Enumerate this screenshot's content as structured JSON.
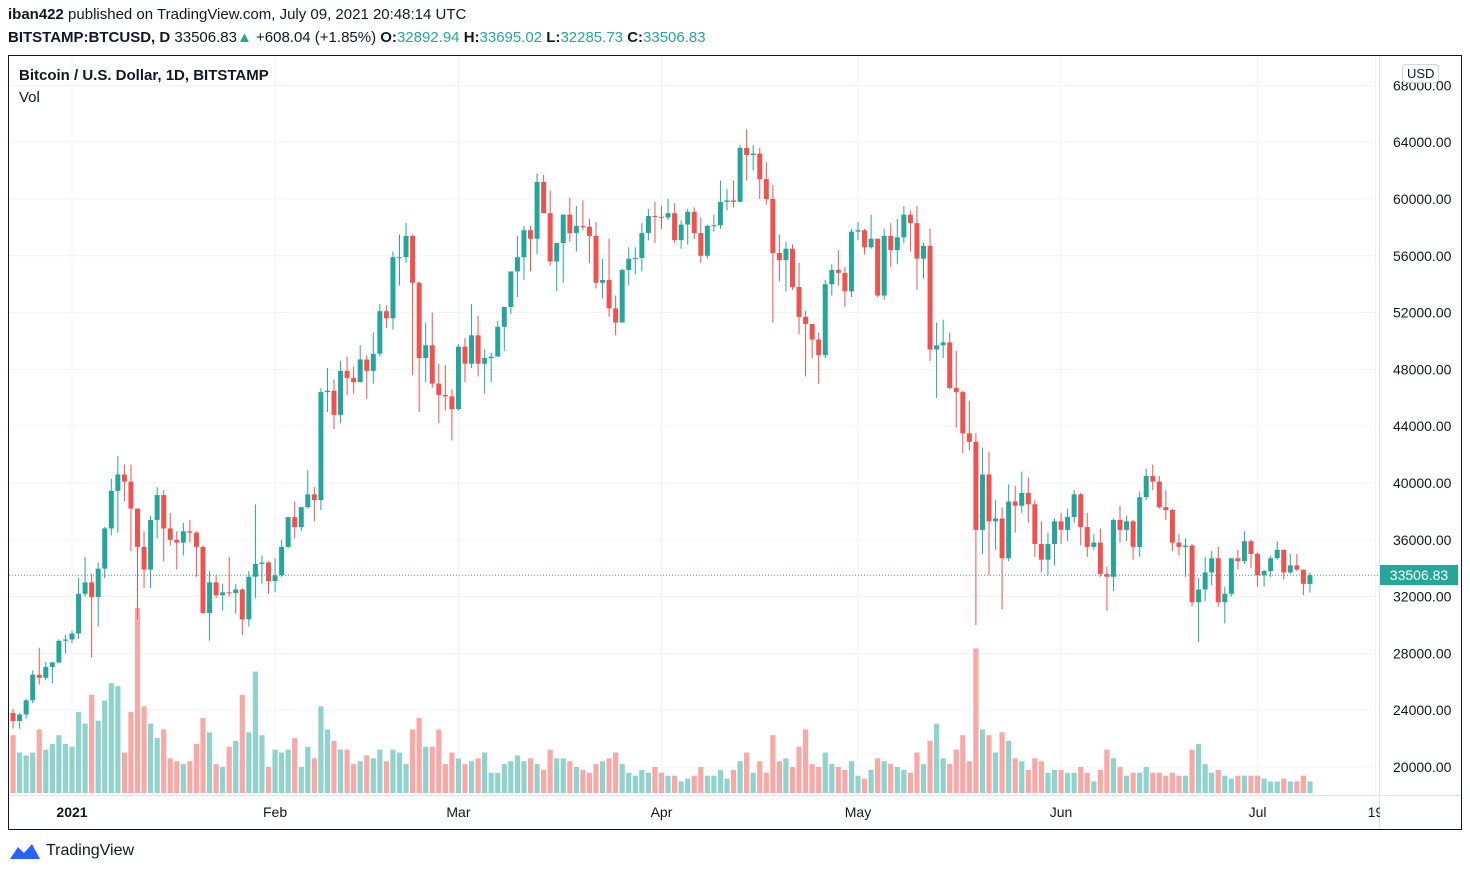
{
  "header": {
    "author": "iban422",
    "published": "published on TradingView.com, July 09, 2021 20:48:14 UTC",
    "symbol": "BITSTAMP:BTCUSD, D",
    "last": "33506.83",
    "change": "+608.04 (+1.85%)",
    "o_label": "O:",
    "o": "32892.94",
    "h_label": "H:",
    "h": "33695.02",
    "l_label": "L:",
    "l": "32285.73",
    "c_label": "C:",
    "c": "33506.83"
  },
  "legend": {
    "title": "Bitcoin / U.S. Dollar, 1D, BITSTAMP",
    "vol": "Vol"
  },
  "currency": "USD",
  "brand": "TradingView",
  "colors": {
    "up": "#26a69a",
    "down": "#ef5350",
    "up_vol": "#92d2cc",
    "down_vol": "#f7a9a7",
    "grid": "#f0f3fa"
  },
  "chart_data": {
    "type": "candlestick",
    "title": "Bitcoin / U.S. Dollar, 1D, BITSTAMP",
    "start_date": "2020-12-22",
    "ylim": [
      18400,
      70000
    ],
    "y_ticks": [
      "20000.00",
      "24000.00",
      "28000.00",
      "32000.00",
      "36000.00",
      "40000.00",
      "44000.00",
      "48000.00",
      "52000.00",
      "56000.00",
      "60000.00",
      "64000.00",
      "68000.00"
    ],
    "x_ticks": [
      {
        "label": "2021",
        "date": "2021-01-01",
        "bold": true
      },
      {
        "label": "Feb",
        "date": "2021-02-01"
      },
      {
        "label": "Mar",
        "date": "2021-03-01"
      },
      {
        "label": "Apr",
        "date": "2021-04-01"
      },
      {
        "label": "May",
        "date": "2021-05-01"
      },
      {
        "label": "Jun",
        "date": "2021-06-01"
      },
      {
        "label": "Jul",
        "date": "2021-07-01"
      },
      {
        "label": "19",
        "date": "2021-07-19"
      }
    ],
    "last_price": "33506.83",
    "columns": [
      "open",
      "high",
      "low",
      "close",
      "volume_k"
    ],
    "ohlcv": [
      [
        22800,
        23900,
        22350,
        23800,
        9
      ],
      [
        23800,
        24100,
        22700,
        23240,
        10
      ],
      [
        23240,
        23800,
        22700,
        23700,
        7
      ],
      [
        23700,
        24800,
        23400,
        24700,
        6.5
      ],
      [
        24700,
        26800,
        24500,
        26500,
        7
      ],
      [
        26500,
        28400,
        25800,
        26280,
        11
      ],
      [
        26280,
        27400,
        26100,
        27050,
        7.5
      ],
      [
        27050,
        27400,
        25900,
        27360,
        8.5
      ],
      [
        27360,
        28990,
        27300,
        28890,
        10
      ],
      [
        28890,
        29300,
        28000,
        28980,
        8.5
      ],
      [
        28980,
        29600,
        28700,
        29400,
        8
      ],
      [
        29400,
        33300,
        29000,
        32200,
        14
      ],
      [
        32200,
        34800,
        32000,
        33000,
        12
      ],
      [
        33000,
        33600,
        27700,
        31970,
        17
      ],
      [
        31970,
        34400,
        29900,
        33970,
        12.5
      ],
      [
        33970,
        36900,
        33300,
        36800,
        16
      ],
      [
        36800,
        40300,
        36300,
        39450,
        19
      ],
      [
        39450,
        41900,
        36500,
        40600,
        18.5
      ],
      [
        40600,
        41300,
        38700,
        40100,
        7
      ],
      [
        40100,
        41300,
        35200,
        38200,
        14
      ],
      [
        38200,
        38200,
        30400,
        35500,
        32
      ],
      [
        35500,
        36600,
        32600,
        33900,
        15
      ],
      [
        33900,
        37700,
        32600,
        37400,
        12
      ],
      [
        37400,
        39700,
        36100,
        39150,
        9.5
      ],
      [
        39150,
        39500,
        34500,
        36800,
        11
      ],
      [
        36800,
        37900,
        35600,
        36000,
        6
      ],
      [
        36000,
        36600,
        33900,
        35800,
        5.5
      ],
      [
        35800,
        37200,
        34900,
        36600,
        5
      ],
      [
        36600,
        37400,
        35800,
        36500,
        5.5
      ],
      [
        36500,
        36600,
        33400,
        35500,
        8.5
      ],
      [
        35500,
        35600,
        30800,
        30850,
        13
      ],
      [
        30850,
        33800,
        28900,
        33000,
        10.5
      ],
      [
        33000,
        33500,
        31900,
        32100,
        5
      ],
      [
        32100,
        32900,
        31000,
        32300,
        4.5
      ],
      [
        32300,
        34800,
        32000,
        32250,
        8
      ],
      [
        32250,
        32900,
        30800,
        32500,
        9
      ],
      [
        32500,
        32600,
        29300,
        30400,
        17
      ],
      [
        30400,
        33800,
        29900,
        33400,
        10.5
      ],
      [
        33400,
        38500,
        31900,
        34300,
        21
      ],
      [
        34300,
        34900,
        32900,
        34400,
        10
      ],
      [
        34400,
        34500,
        32200,
        33100,
        4.5
      ],
      [
        33100,
        34700,
        32300,
        33500,
        7.5
      ],
      [
        33500,
        36000,
        33400,
        35500,
        7
      ],
      [
        35500,
        37600,
        35400,
        37600,
        7.5
      ],
      [
        37600,
        38700,
        36100,
        36900,
        9.5
      ],
      [
        36900,
        38300,
        36600,
        38300,
        4.5
      ],
      [
        38300,
        40900,
        38200,
        39200,
        8
      ],
      [
        39200,
        39700,
        37300,
        38800,
        6
      ],
      [
        38800,
        46700,
        38100,
        46400,
        15
      ],
      [
        46400,
        48100,
        45000,
        46500,
        11
      ],
      [
        46500,
        47300,
        43800,
        44800,
        9
      ],
      [
        44800,
        48600,
        44200,
        47900,
        7.5
      ],
      [
        47900,
        48900,
        46200,
        47400,
        7.5
      ],
      [
        47400,
        48200,
        46300,
        47100,
        5
      ],
      [
        47100,
        49700,
        47100,
        48700,
        5.5
      ],
      [
        48700,
        49000,
        45900,
        47900,
        6.5
      ],
      [
        47900,
        50600,
        47000,
        49100,
        6
      ],
      [
        49100,
        52600,
        48900,
        52100,
        7.5
      ],
      [
        52100,
        52500,
        50900,
        51600,
        5.5
      ],
      [
        51600,
        56300,
        50800,
        55900,
        7.5
      ],
      [
        55900,
        57500,
        53900,
        55900,
        7
      ],
      [
        55900,
        58300,
        55500,
        57400,
        5
      ],
      [
        57400,
        57500,
        47600,
        54100,
        11
      ],
      [
        54100,
        54200,
        45000,
        48800,
        13
      ],
      [
        48800,
        51300,
        47100,
        49700,
        8
      ],
      [
        49700,
        52000,
        46700,
        47000,
        8
      ],
      [
        47000,
        48400,
        44200,
        46200,
        11
      ],
      [
        46200,
        48300,
        45100,
        46100,
        5
      ],
      [
        46100,
        46600,
        43000,
        45200,
        7
      ],
      [
        45200,
        49800,
        45100,
        49600,
        6
      ],
      [
        49600,
        50200,
        47100,
        48400,
        5
      ],
      [
        48400,
        52600,
        48100,
        50400,
        5.5
      ],
      [
        50400,
        51800,
        47500,
        48400,
        6
      ],
      [
        48400,
        49400,
        46300,
        48800,
        7
      ],
      [
        48800,
        49200,
        47100,
        48900,
        3.5
      ],
      [
        48900,
        51400,
        48900,
        51000,
        3.5
      ],
      [
        51000,
        52400,
        49300,
        52400,
        5
      ],
      [
        52400,
        54900,
        51900,
        54900,
        5.5
      ],
      [
        54900,
        57400,
        53100,
        55900,
        6.5
      ],
      [
        55900,
        58100,
        54300,
        57800,
        5.5
      ],
      [
        57800,
        58100,
        54900,
        57200,
        6
      ],
      [
        57200,
        61800,
        56100,
        61200,
        5
      ],
      [
        61200,
        61700,
        59000,
        59000,
        4
      ],
      [
        59000,
        60600,
        55300,
        55600,
        7.5
      ],
      [
        55600,
        56900,
        53500,
        56900,
        6
      ],
      [
        56900,
        58900,
        54100,
        58900,
        6
      ],
      [
        58900,
        60100,
        57000,
        57600,
        5.5
      ],
      [
        57600,
        59500,
        56300,
        58100,
        4.5
      ],
      [
        58100,
        59900,
        57800,
        58050,
        4
      ],
      [
        58050,
        58600,
        55500,
        57400,
        3.5
      ],
      [
        57400,
        58400,
        53700,
        54100,
        5
      ],
      [
        54100,
        55800,
        53000,
        54300,
        5.5
      ],
      [
        54300,
        57200,
        51700,
        52300,
        6
      ],
      [
        52300,
        53200,
        50400,
        51300,
        7
      ],
      [
        51300,
        55100,
        51300,
        55000,
        5
      ],
      [
        55000,
        56600,
        53900,
        55800,
        3.5
      ],
      [
        55800,
        56600,
        54700,
        55850,
        3
      ],
      [
        55850,
        58300,
        54900,
        57600,
        4
      ],
      [
        57600,
        59300,
        57100,
        58800,
        3.5
      ],
      [
        58800,
        59800,
        56900,
        58750,
        4.5
      ],
      [
        58750,
        59500,
        57900,
        58700,
        3.5
      ],
      [
        58700,
        60000,
        58500,
        59000,
        3
      ],
      [
        59000,
        59700,
        56900,
        57100,
        3
      ],
      [
        57100,
        58500,
        56500,
        58200,
        2
      ],
      [
        58200,
        59300,
        56800,
        59100,
        2.5
      ],
      [
        59100,
        59400,
        57200,
        57600,
        3
      ],
      [
        57600,
        58700,
        55500,
        56000,
        4.5
      ],
      [
        56000,
        58200,
        55800,
        58100,
        3
      ],
      [
        58100,
        58900,
        57700,
        58150,
        3
      ],
      [
        58150,
        61300,
        57900,
        59800,
        4
      ],
      [
        59800,
        60700,
        59200,
        59900,
        2.5
      ],
      [
        59900,
        61300,
        59400,
        59800,
        4
      ],
      [
        59800,
        63800,
        59800,
        63600,
        5.5
      ],
      [
        63600,
        64900,
        61300,
        63100,
        7
      ],
      [
        63100,
        63800,
        62000,
        63200,
        3.5
      ],
      [
        63200,
        63600,
        60000,
        61400,
        5.5
      ],
      [
        61400,
        62600,
        59600,
        60000,
        3.5
      ],
      [
        60000,
        61000,
        51300,
        56200,
        10
      ],
      [
        56200,
        57500,
        54200,
        55700,
        5.5
      ],
      [
        55700,
        57000,
        53500,
        56500,
        6
      ],
      [
        56500,
        56800,
        53600,
        53800,
        4.5
      ],
      [
        53800,
        55500,
        50500,
        51700,
        8
      ],
      [
        51700,
        52100,
        47500,
        51200,
        11
      ],
      [
        51200,
        51200,
        48800,
        50100,
        5
      ],
      [
        50100,
        50600,
        47000,
        49000,
        4.5
      ],
      [
        49000,
        54300,
        48800,
        54000,
        7
      ],
      [
        54000,
        55400,
        53200,
        55000,
        5
      ],
      [
        55000,
        56400,
        53900,
        54800,
        4.5
      ],
      [
        54800,
        55200,
        52400,
        53500,
        4
      ],
      [
        53500,
        57900,
        53100,
        57700,
        5.5
      ],
      [
        57700,
        58400,
        57100,
        57800,
        3
      ],
      [
        57800,
        57900,
        56100,
        56600,
        2.5
      ],
      [
        56600,
        58900,
        56500,
        57200,
        4
      ],
      [
        57200,
        57200,
        53100,
        53200,
        6
      ],
      [
        53200,
        57900,
        52900,
        57400,
        5.5
      ],
      [
        57400,
        58300,
        55200,
        56400,
        5
      ],
      [
        56400,
        58600,
        55400,
        57300,
        4.5
      ],
      [
        57300,
        59500,
        56900,
        58900,
        4
      ],
      [
        58900,
        59200,
        56300,
        58300,
        3.5
      ],
      [
        58300,
        59500,
        53600,
        55800,
        7
      ],
      [
        55800,
        56900,
        54400,
        56700,
        5
      ],
      [
        56700,
        57900,
        48600,
        49400,
        9
      ],
      [
        49400,
        51300,
        46000,
        49700,
        12
      ],
      [
        49700,
        51500,
        48800,
        49900,
        6
      ],
      [
        49900,
        50600,
        46600,
        46700,
        5
      ],
      [
        46700,
        49300,
        43900,
        46400,
        7.5
      ],
      [
        46400,
        46500,
        42100,
        43500,
        10
      ],
      [
        43500,
        45800,
        42300,
        42900,
        5.5
      ],
      [
        42900,
        43500,
        30000,
        36700,
        25
      ],
      [
        36700,
        42500,
        35000,
        40600,
        11
      ],
      [
        40600,
        42200,
        33500,
        37300,
        10
      ],
      [
        37300,
        38800,
        35300,
        37500,
        7
      ],
      [
        37500,
        38300,
        31100,
        34700,
        10.5
      ],
      [
        34700,
        39900,
        34500,
        38700,
        9
      ],
      [
        38700,
        39800,
        36500,
        38400,
        6
      ],
      [
        38400,
        40800,
        37900,
        39300,
        5.5
      ],
      [
        39300,
        40400,
        37200,
        38500,
        4
      ],
      [
        38500,
        38800,
        34800,
        35700,
        6
      ],
      [
        35700,
        37300,
        33700,
        34600,
        5.5
      ],
      [
        34600,
        36500,
        33500,
        35700,
        3.5
      ],
      [
        35700,
        37500,
        34200,
        37300,
        4
      ],
      [
        37300,
        37900,
        35700,
        36700,
        4
      ],
      [
        36700,
        38200,
        35900,
        37600,
        3.5
      ],
      [
        37600,
        39500,
        37200,
        39200,
        3.5
      ],
      [
        39200,
        39300,
        35600,
        36900,
        4.5
      ],
      [
        36900,
        37900,
        34800,
        35500,
        3.5
      ],
      [
        35500,
        36400,
        35300,
        35800,
        2
      ],
      [
        35800,
        36800,
        33400,
        33600,
        4
      ],
      [
        33600,
        34100,
        31000,
        33400,
        7.5
      ],
      [
        33400,
        37500,
        32400,
        37400,
        6
      ],
      [
        37400,
        38400,
        35800,
        36700,
        4.5
      ],
      [
        36700,
        37700,
        35900,
        37300,
        3
      ],
      [
        37300,
        37400,
        34600,
        35500,
        3.5
      ],
      [
        35500,
        39400,
        34800,
        39000,
        3.5
      ],
      [
        39000,
        41000,
        38800,
        40500,
        4.5
      ],
      [
        40500,
        41300,
        39500,
        40100,
        3.5
      ],
      [
        40100,
        40500,
        38200,
        38300,
        3.5
      ],
      [
        38300,
        39500,
        37400,
        38100,
        3
      ],
      [
        38100,
        38200,
        35200,
        35800,
        3.5
      ],
      [
        35800,
        36400,
        34900,
        35500,
        3
      ],
      [
        35500,
        36100,
        33400,
        35600,
        3
      ],
      [
        35600,
        35700,
        31300,
        31600,
        7.5
      ],
      [
        31600,
        33300,
        28800,
        32500,
        8.5
      ],
      [
        32500,
        34800,
        31700,
        33700,
        5
      ],
      [
        33700,
        35200,
        32800,
        34700,
        3.5
      ],
      [
        34700,
        35500,
        31300,
        31600,
        4
      ],
      [
        31600,
        32700,
        30100,
        32200,
        3
      ],
      [
        32200,
        34700,
        32000,
        34700,
        2.5
      ],
      [
        34700,
        35300,
        33900,
        34500,
        3
      ],
      [
        34500,
        36600,
        34300,
        35900,
        3
      ],
      [
        35900,
        36000,
        34000,
        35000,
        3
      ],
      [
        35000,
        35100,
        32700,
        33500,
        3
      ],
      [
        33500,
        33900,
        32700,
        33800,
        2.5
      ],
      [
        33800,
        34900,
        33400,
        34700,
        2
      ],
      [
        34700,
        35900,
        34600,
        35300,
        2
      ],
      [
        35300,
        35300,
        33200,
        33700,
        2.5
      ],
      [
        33700,
        35000,
        33600,
        34200,
        2
      ],
      [
        34200,
        35000,
        33800,
        33900,
        2
      ],
      [
        33900,
        33900,
        32100,
        32900,
        3
      ],
      [
        32892.94,
        33695.02,
        32285.73,
        33506.83,
        2
      ]
    ]
  }
}
